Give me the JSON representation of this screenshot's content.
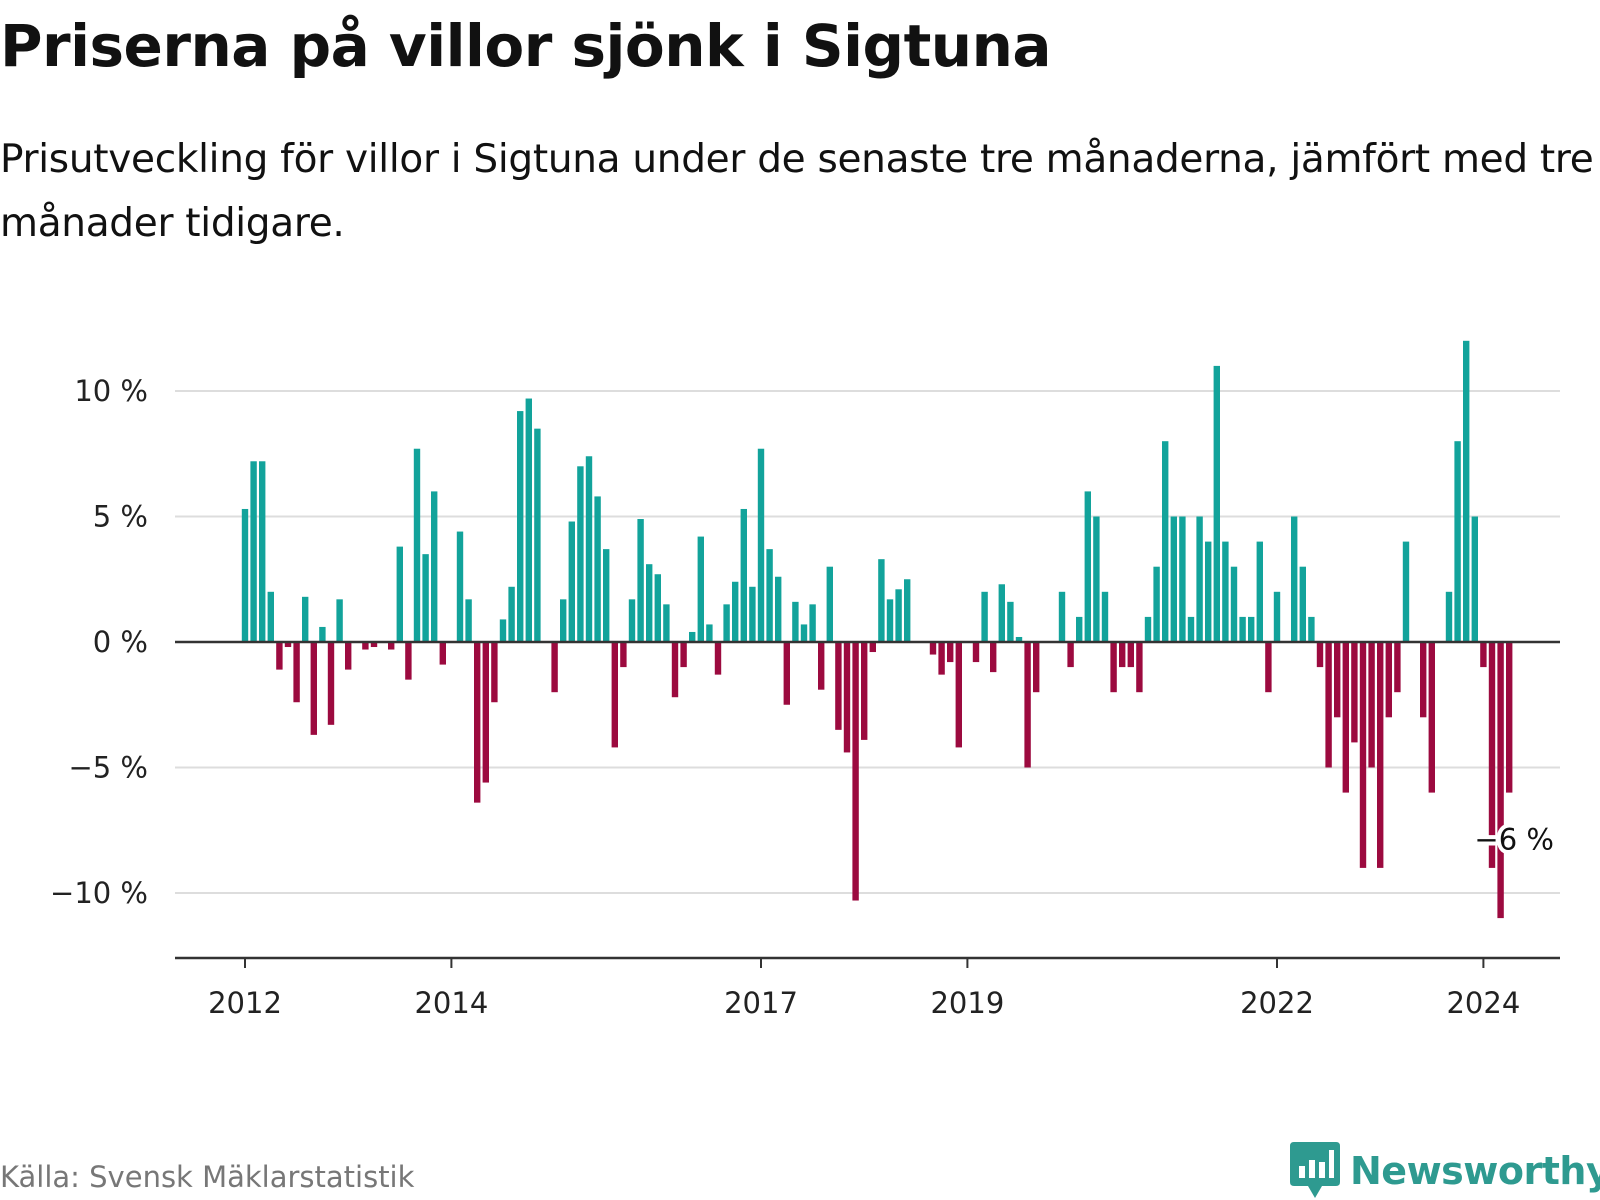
{
  "title": "Priserna på villor sjönk i Sigtuna",
  "subtitle": "Prisutveckling för villor i Sigtuna under de senaste tre månaderna, jämfört med tre månader tidigare.",
  "source": "Källa: Svensk Mäklarstatistik",
  "brand": {
    "name": "Newsworthy",
    "icon": "newsworthy-logo-icon"
  },
  "colors": {
    "positive": "#12a39b",
    "negative": "#9c0a3f",
    "grid": "#dddddd",
    "axis": "#333333",
    "brand": "#2e9a90"
  },
  "chart_data": {
    "type": "bar",
    "title": "Priserna på villor sjönk i Sigtuna",
    "xlabel": "",
    "ylabel": "",
    "unit": "%",
    "ylim": [
      -13,
      13
    ],
    "y_ticks": [
      {
        "value": 10,
        "label": "10 %"
      },
      {
        "value": 5,
        "label": "5 %"
      },
      {
        "value": 0,
        "label": "0 %"
      },
      {
        "value": -5,
        "label": "−5 %"
      },
      {
        "value": -10,
        "label": "−10 %"
      }
    ],
    "x_ticks": [
      {
        "index": 0,
        "label": "2012"
      },
      {
        "index": 24,
        "label": "2014"
      },
      {
        "index": 60,
        "label": "2017"
      },
      {
        "index": 84,
        "label": "2019"
      },
      {
        "index": 120,
        "label": "2022"
      },
      {
        "index": 144,
        "label": "2024"
      }
    ],
    "start": "2012-01",
    "values": [
      5.3,
      7.2,
      7.2,
      2.0,
      -1.1,
      -0.2,
      -2.4,
      1.8,
      -3.7,
      0.6,
      -3.3,
      1.7,
      -1.1,
      0.0,
      -0.3,
      -0.2,
      0.0,
      -0.3,
      3.8,
      -1.5,
      7.7,
      3.5,
      6.0,
      -0.9,
      0.0,
      4.4,
      1.7,
      -6.4,
      -5.6,
      -2.4,
      0.9,
      2.2,
      9.2,
      9.7,
      8.5,
      0.0,
      -2.0,
      1.7,
      4.8,
      7.0,
      7.4,
      5.8,
      3.7,
      -4.2,
      -1.0,
      1.7,
      4.9,
      3.1,
      2.7,
      1.5,
      -2.2,
      -1.0,
      0.4,
      4.2,
      0.7,
      -1.3,
      1.5,
      2.4,
      5.3,
      2.2,
      7.7,
      3.7,
      2.6,
      -2.5,
      1.6,
      0.7,
      1.5,
      -1.9,
      3.0,
      -3.5,
      -4.4,
      -10.3,
      -3.9,
      -0.4,
      3.3,
      1.7,
      2.1,
      2.5,
      0.0,
      0.0,
      -0.5,
      -1.3,
      -0.8,
      -4.2,
      0.0,
      -0.8,
      2.0,
      -1.2,
      2.3,
      1.6,
      0.2,
      -5.0,
      -2.0,
      0.0,
      0.0,
      2.0,
      -1.0,
      1.0,
      6.0,
      5.0,
      2.0,
      -2.0,
      -1.0,
      -1.0,
      -2.0,
      1.0,
      3.0,
      8.0,
      5.0,
      5.0,
      1.0,
      5.0,
      4.0,
      11.0,
      4.0,
      3.0,
      1.0,
      1.0,
      4.0,
      -2.0,
      2.0,
      0.0,
      5.0,
      3.0,
      1.0,
      -1.0,
      -5.0,
      -3.0,
      -6.0,
      -4.0,
      -9.0,
      -5.0,
      -9.0,
      -3.0,
      -2.0,
      4.0,
      0.0,
      -3.0,
      -6.0,
      0.0,
      2.0,
      8.0,
      12.0,
      5.0,
      -1.0,
      -9.0,
      -11.0,
      -6.0
    ],
    "annotation": {
      "index": 147,
      "value": -6,
      "text": "−6 %"
    }
  }
}
